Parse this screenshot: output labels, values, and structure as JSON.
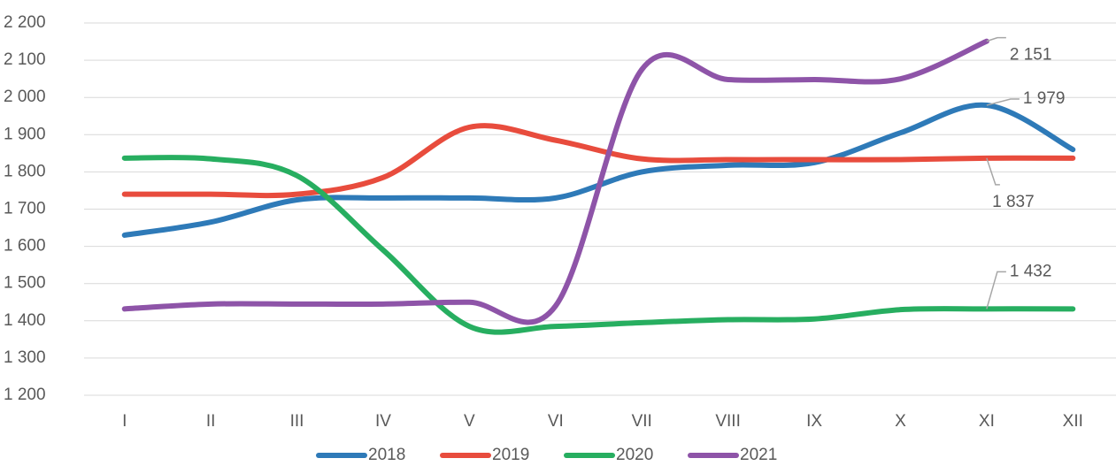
{
  "chart_data": {
    "type": "line",
    "categories": [
      "I",
      "II",
      "III",
      "IV",
      "V",
      "VI",
      "VII",
      "VIII",
      "IX",
      "X",
      "XI",
      "XII"
    ],
    "series": [
      {
        "name": "2018",
        "color": "#2e7ab8",
        "values": [
          1630,
          1665,
          1725,
          1730,
          1730,
          1730,
          1800,
          1818,
          1825,
          1905,
          1979,
          1860
        ],
        "value_labels": [
          null,
          null,
          null,
          null,
          null,
          null,
          null,
          null,
          null,
          null,
          "1 979",
          null
        ]
      },
      {
        "name": "2019",
        "color": "#e84c3d",
        "values": [
          1740,
          1740,
          1740,
          1785,
          1920,
          1885,
          1835,
          1833,
          1833,
          1833,
          1837,
          1837
        ],
        "value_labels": [
          null,
          null,
          null,
          null,
          null,
          null,
          null,
          null,
          null,
          null,
          "1 837",
          null
        ]
      },
      {
        "name": "2020",
        "color": "#27ae60",
        "values": [
          1837,
          1835,
          1790,
          1590,
          1385,
          1385,
          1395,
          1403,
          1405,
          1430,
          1432,
          1432
        ],
        "value_labels": [
          null,
          null,
          null,
          null,
          null,
          null,
          null,
          null,
          null,
          null,
          "1 432",
          null
        ]
      },
      {
        "name": "2021",
        "color": "#8e54a8",
        "values": [
          1432,
          1445,
          1445,
          1445,
          1450,
          1440,
          2075,
          2048,
          2048,
          2050,
          2151,
          null
        ],
        "value_labels": [
          null,
          null,
          null,
          null,
          null,
          null,
          null,
          null,
          null,
          null,
          "2 151",
          null
        ]
      }
    ],
    "ylim": [
      1200,
      2200
    ],
    "yticks": [
      {
        "value": 1200,
        "label": "1 200"
      },
      {
        "value": 1300,
        "label": "1 300"
      },
      {
        "value": 1400,
        "label": "1 400"
      },
      {
        "value": 1500,
        "label": "1 500"
      },
      {
        "value": 1600,
        "label": "1 600"
      },
      {
        "value": 1700,
        "label": "1 700"
      },
      {
        "value": 1800,
        "label": "1 800"
      },
      {
        "value": 1900,
        "label": "1 900"
      },
      {
        "value": 2000,
        "label": "2 000"
      },
      {
        "value": 2100,
        "label": "2 100"
      },
      {
        "value": 2200,
        "label": "2 200"
      }
    ],
    "grid": true,
    "legend": "bottom"
  }
}
